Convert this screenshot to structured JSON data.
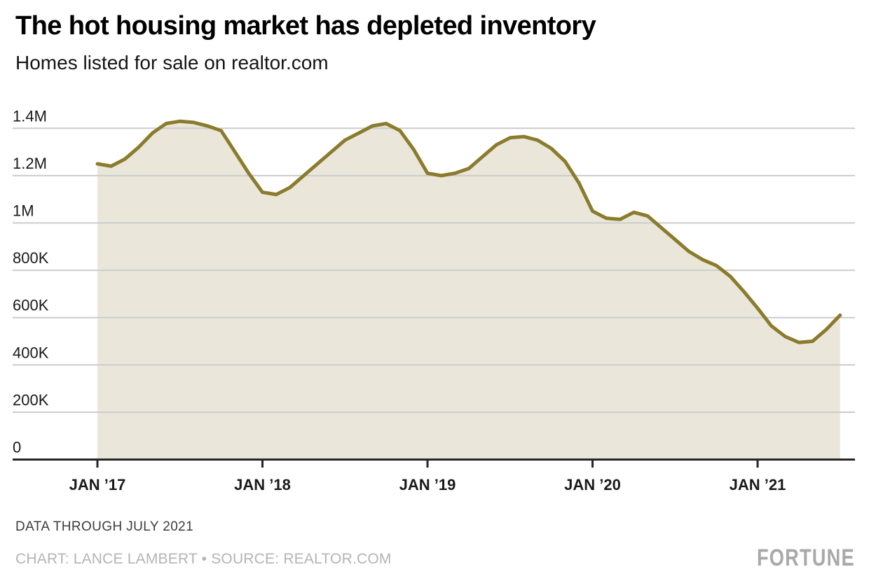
{
  "header": {
    "title": "The hot housing market has depleted inventory",
    "subtitle": "Homes listed for sale on realtor.com"
  },
  "footer": {
    "note": "DATA THROUGH JULY 2021",
    "credit": "CHART: LANCE LAMBERT • SOURCE: REALTOR.COM",
    "brand": "FORTUNE"
  },
  "colors": {
    "line": "#8b7b2d",
    "fill": "#eae7da",
    "grid": "#cccccc",
    "axis": "#262626",
    "axis_label": "#1a1a1a",
    "note_text": "#3c3c3c",
    "credit_text": "#b4b4b4",
    "brand_text": "#a9a9a9"
  },
  "chart_data": {
    "type": "area",
    "title": "The hot housing market has depleted inventory",
    "subtitle": "Homes listed for sale on realtor.com",
    "series_name": "Homes listed for sale on realtor.com",
    "units": "homes",
    "frequency": "monthly",
    "x_start": "2017-01",
    "x_end": "2021-07",
    "values": [
      1250000,
      1240000,
      1270000,
      1320000,
      1380000,
      1420000,
      1430000,
      1425000,
      1410000,
      1390000,
      1300000,
      1210000,
      1130000,
      1120000,
      1150000,
      1200000,
      1250000,
      1300000,
      1350000,
      1380000,
      1410000,
      1420000,
      1390000,
      1310000,
      1210000,
      1200000,
      1210000,
      1230000,
      1280000,
      1330000,
      1360000,
      1365000,
      1350000,
      1315000,
      1260000,
      1170000,
      1050000,
      1020000,
      1015000,
      1045000,
      1030000,
      980000,
      930000,
      880000,
      845000,
      820000,
      775000,
      710000,
      640000,
      565000,
      520000,
      495000,
      500000,
      550000,
      610000
    ],
    "x_ticks": [
      {
        "index": 0,
        "label": "JAN ’17"
      },
      {
        "index": 12,
        "label": "JAN ’18"
      },
      {
        "index": 24,
        "label": "JAN ’19"
      },
      {
        "index": 36,
        "label": "JAN ’20"
      },
      {
        "index": 48,
        "label": "JAN ’21"
      }
    ],
    "y_ticks": [
      {
        "value": 0,
        "label": "0"
      },
      {
        "value": 200000,
        "label": "200K"
      },
      {
        "value": 400000,
        "label": "400K"
      },
      {
        "value": 600000,
        "label": "600K"
      },
      {
        "value": 800000,
        "label": "800K"
      },
      {
        "value": 1000000,
        "label": "1M"
      },
      {
        "value": 1200000,
        "label": "1.2M"
      },
      {
        "value": 1400000,
        "label": "1.4M"
      }
    ],
    "ylim": [
      0,
      1400000
    ],
    "grid": true,
    "legend": false
  }
}
